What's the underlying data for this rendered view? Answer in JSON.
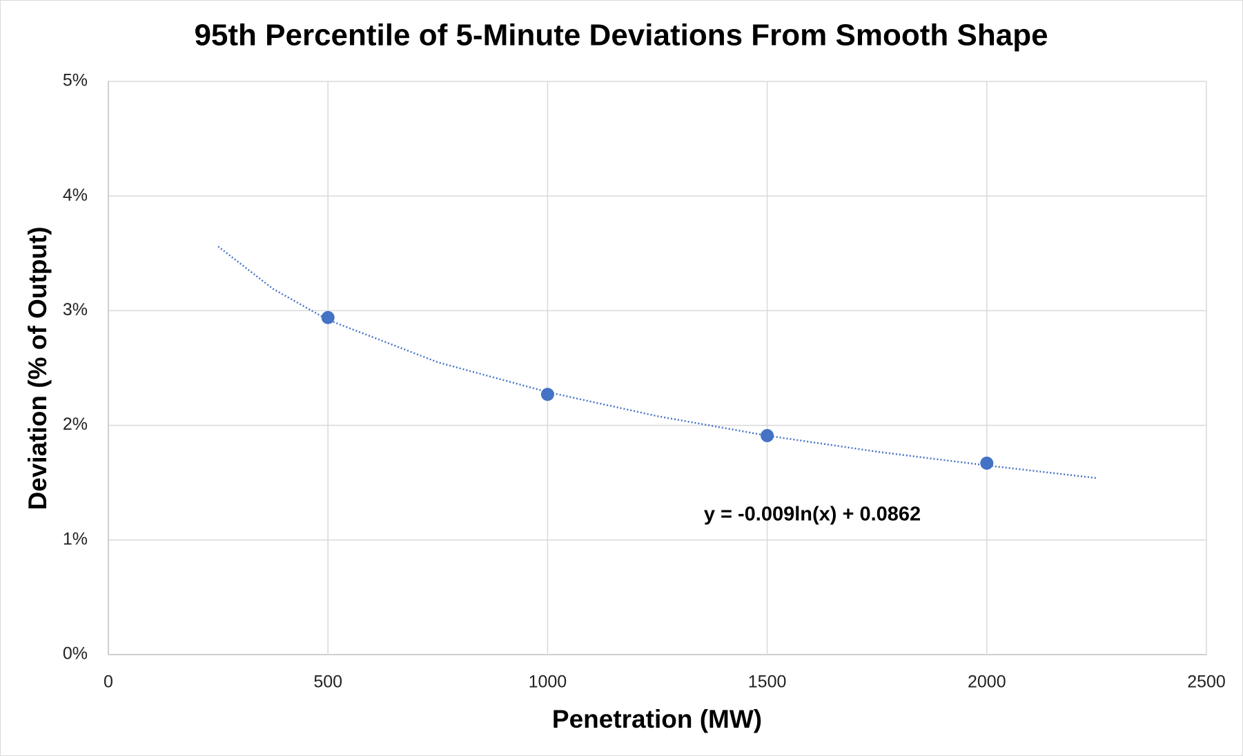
{
  "chart_data": {
    "type": "scatter",
    "title": "95th Percentile of 5-Minute Deviations From Smooth Shape",
    "x_label": "Penetration (MW)",
    "y_label": "Deviation (% of Output)",
    "annotation": "y = -0.009ln(x) + 0.0862",
    "series": [
      {
        "color": "#4472c4",
        "x": [
          500,
          1000,
          1500,
          2000
        ],
        "values": [
          2.94,
          2.27,
          1.91,
          1.67
        ]
      }
    ],
    "trendline": {
      "color": "#4472c4",
      "style": "dotted",
      "x": [
        250,
        375,
        500,
        750,
        1000,
        1250,
        1500,
        1750,
        2000,
        2250
      ],
      "values": [
        3.56,
        3.19,
        2.92,
        2.55,
        2.29,
        2.08,
        1.91,
        1.77,
        1.65,
        1.54
      ]
    },
    "xlim": [
      0,
      2500
    ],
    "xticks": [
      0,
      500,
      1000,
      1500,
      2000,
      2500
    ],
    "ylim": [
      0,
      5
    ],
    "yticks": [
      {
        "value": 0,
        "label": "0%"
      },
      {
        "value": 1,
        "label": "1%"
      },
      {
        "value": 2,
        "label": "2%"
      },
      {
        "value": 3,
        "label": "3%"
      },
      {
        "value": 4,
        "label": "4%"
      },
      {
        "value": 5,
        "label": "5%"
      }
    ],
    "grid": true
  }
}
